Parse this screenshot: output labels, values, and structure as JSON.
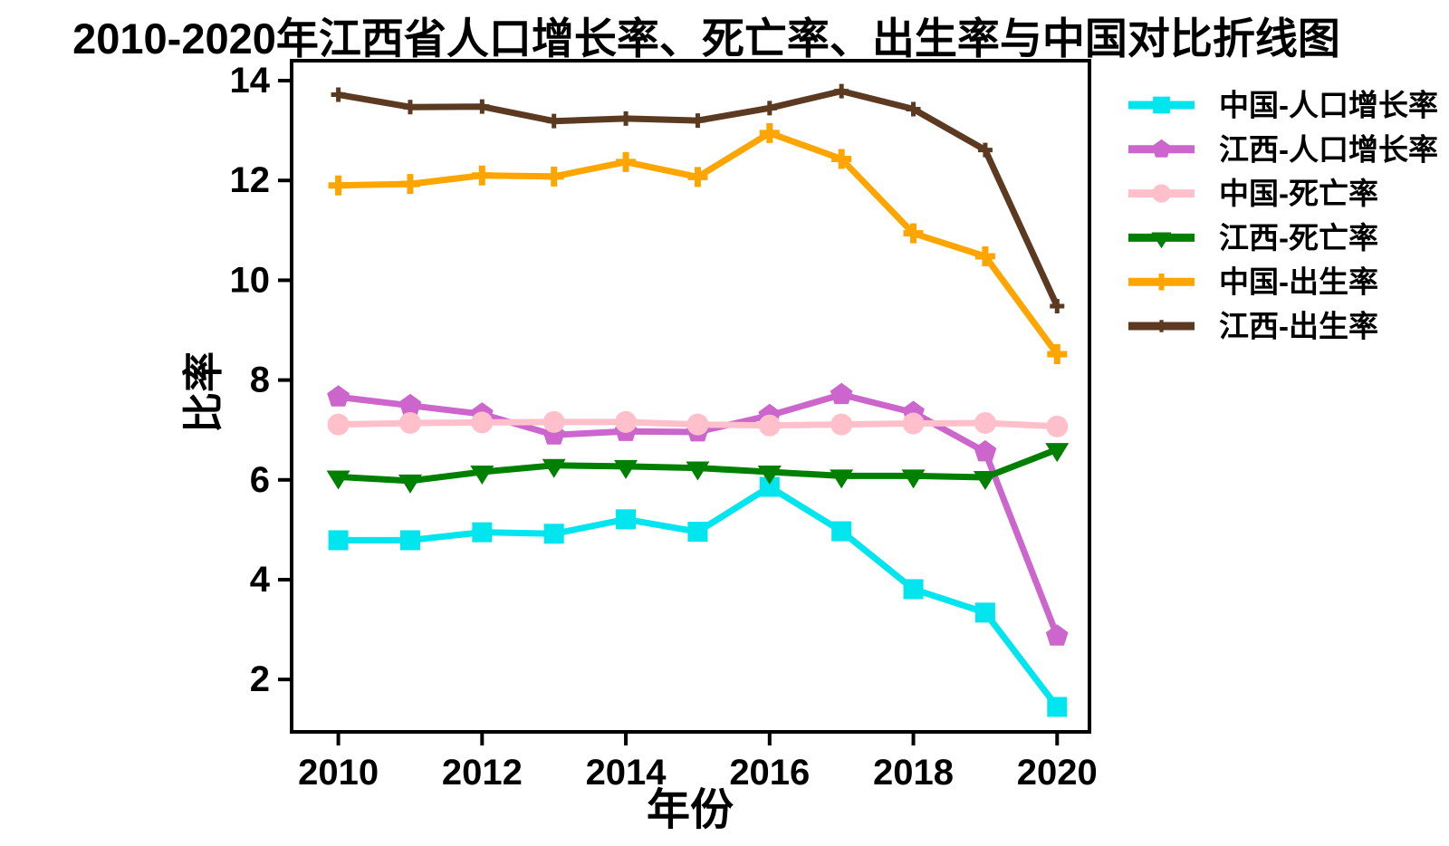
{
  "title": "2010-2020年江西省人口增长率、死亡率、出生率与中国对比折线图",
  "chart_data": {
    "type": "line",
    "title": "2010-2020年江西省人口增长率、死亡率、出生率与中国对比折线图",
    "xlabel": "年份",
    "ylabel": "比率",
    "x": [
      2010,
      2011,
      2012,
      2013,
      2014,
      2015,
      2016,
      2017,
      2018,
      2019,
      2020
    ],
    "xticks": [
      2010,
      2012,
      2014,
      2016,
      2018,
      2020
    ],
    "yticks": [
      2,
      4,
      6,
      8,
      10,
      12,
      14
    ],
    "xlim": [
      2009.35,
      2020.45
    ],
    "ylim": [
      0.95,
      14.4
    ],
    "grid": false,
    "legend_position": "right-outside",
    "axis_color": "#000000",
    "series": [
      {
        "id": "china-growth",
        "name": "中国-人口增长率",
        "color": "#00e5ee",
        "marker": "square",
        "values": [
          4.79,
          4.79,
          4.95,
          4.92,
          5.21,
          4.96,
          5.86,
          4.97,
          3.81,
          3.34,
          1.45
        ]
      },
      {
        "id": "jiangxi-growth",
        "name": "江西-人口增长率",
        "color": "#cc66cc",
        "marker": "pentagon",
        "values": [
          7.66,
          7.49,
          7.32,
          6.9,
          6.97,
          6.96,
          7.29,
          7.71,
          7.35,
          6.56,
          2.87
        ]
      },
      {
        "id": "china-death",
        "name": "中国-死亡率",
        "color": "#ffc0cb",
        "marker": "circle",
        "values": [
          7.11,
          7.14,
          7.15,
          7.16,
          7.16,
          7.11,
          7.09,
          7.11,
          7.13,
          7.14,
          7.07
        ]
      },
      {
        "id": "jiangxi-death",
        "name": "江西-死亡率",
        "color": "#008000",
        "marker": "triangle-down",
        "values": [
          6.06,
          5.98,
          6.16,
          6.29,
          6.27,
          6.24,
          6.16,
          6.08,
          6.08,
          6.05,
          6.61
        ]
      },
      {
        "id": "china-birth",
        "name": "中国-出生率",
        "color": "#ffa500",
        "marker": "plus",
        "values": [
          11.9,
          11.93,
          12.1,
          12.08,
          12.37,
          12.07,
          12.95,
          12.43,
          10.94,
          10.48,
          8.52
        ]
      },
      {
        "id": "jiangxi-birth",
        "name": "江西-出生率",
        "color": "#5c3a21",
        "marker": "plus-small",
        "values": [
          13.72,
          13.47,
          13.48,
          13.19,
          13.24,
          13.2,
          13.45,
          13.79,
          13.43,
          12.61,
          9.48
        ]
      }
    ]
  }
}
